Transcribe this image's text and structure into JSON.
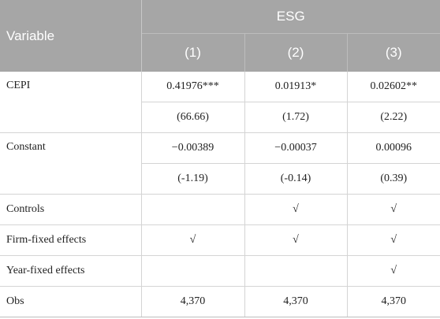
{
  "header": {
    "variable_label": "Variable",
    "group_label": "ESG",
    "columns": [
      "(1)",
      "(2)",
      "(3)"
    ]
  },
  "rows": {
    "cepi": {
      "label": "CEPI",
      "coef": [
        "0.41976***",
        "0.01913*",
        "0.02602**"
      ],
      "t": [
        "(66.66)",
        "(1.72)",
        "(2.22)"
      ]
    },
    "constant": {
      "label": "Constant",
      "coef": [
        "−0.00389",
        "−0.00037",
        "0.00096"
      ],
      "t": [
        "(-1.19)",
        "(-0.14)",
        "(0.39)"
      ]
    },
    "controls": {
      "label": "Controls",
      "values": [
        "",
        "√",
        "√"
      ]
    },
    "firm_fe": {
      "label": "Firm-fixed effects",
      "values": [
        "√",
        "√",
        "√"
      ]
    },
    "year_fe": {
      "label": "Year-fixed effects",
      "values": [
        "",
        "",
        "√"
      ]
    },
    "obs": {
      "label": "Obs",
      "values": [
        "4,370",
        "4,370",
        "4,370"
      ]
    }
  }
}
